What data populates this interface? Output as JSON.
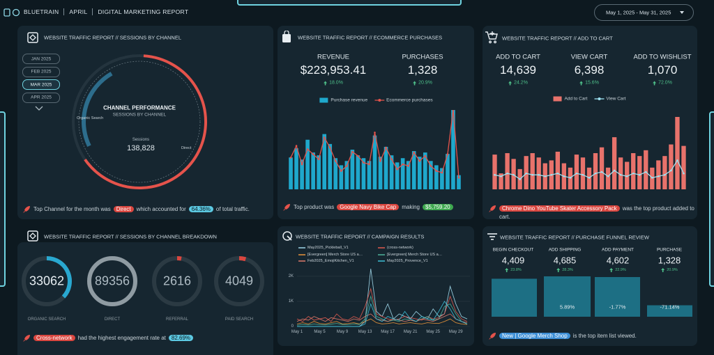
{
  "header": {
    "brand": "BLUETRAIN",
    "month": "APRIL",
    "report": "DIGITAL MARKETING REPORT",
    "date_range": "May 1, 2025 - May 31, 2025"
  },
  "sessions_by_channel": {
    "title": "WEBSITE TRAFFIC REPORT // SESSIONS BY CHANNEL",
    "months": [
      "JAN 2025",
      "FEB 2025",
      "MAR 2025",
      "APR 2025"
    ],
    "selected_month": "MAR 2025",
    "ring_title": "CHANNEL PERFORMANCE",
    "ring_subtitle": "SESSIONS BY CHANNEL",
    "segments": [
      {
        "name": "Direct",
        "value": 64.36,
        "color": "#e5534b"
      },
      {
        "name": "Organic Search",
        "value": 23.82,
        "color": "#2d6d8c"
      }
    ],
    "total_label": "Sessions",
    "total": "138,828",
    "insight": [
      {
        "text": "Top Channel for the month was"
      },
      {
        "text": "Direct",
        "chip": "#d9463f"
      },
      {
        "text": "which accounted for"
      },
      {
        "text": "64.36%",
        "chip": "#5cc9e2"
      },
      {
        "text": "of total traffic."
      }
    ]
  },
  "ecommerce_purchases": {
    "title": "WEBSITE TRAFFIC REPORT // ECOMMERCE PURCHASES",
    "kpis": [
      {
        "label": "REVENUE",
        "value": "$223,953.41",
        "change": "18.0%"
      },
      {
        "label": "PURCHASES",
        "value": "1,328",
        "change": "20.9%"
      }
    ],
    "chart": {
      "scale": "separate",
      "series": [
        {
          "name": "Purchase revenue",
          "type": "bar",
          "color": "#1fa8cc",
          "values": [
            5850,
            7540,
            5460,
            9100,
            6760,
            6240,
            10140,
            8320,
            5720,
            4420,
            5200,
            7280,
            6240,
            5720,
            5200,
            9880,
            5980,
            7800,
            6240,
            4940,
            5720,
            5200,
            7020,
            5980,
            6760,
            5200,
            4420,
            3900,
            6500,
            14560,
            2600
          ]
        },
        {
          "name": "Ecommerce purchases",
          "type": "line",
          "color": "#e5534b",
          "values": [
            38,
            52,
            30,
            48,
            42,
            36,
            62,
            50,
            34,
            22,
            28,
            45,
            40,
            32,
            30,
            68,
            34,
            50,
            36,
            24,
            30,
            28,
            44,
            34,
            40,
            28,
            22,
            20,
            42,
            95,
            14
          ]
        }
      ]
    },
    "insight": [
      {
        "text": "Top product was"
      },
      {
        "text": "Google Navy Bike Cap",
        "chip": "#d9463f"
      },
      {
        "text": "making"
      },
      {
        "text": "$5,759.20",
        "chip": "#3ea84f"
      }
    ]
  },
  "add_to_cart": {
    "title": "WEBSITE TRAFFIC REPORT // ADD TO CART",
    "kpis": [
      {
        "label": "ADD TO CART",
        "value": "14,639",
        "change": "24.2%"
      },
      {
        "label": "VIEW CART",
        "value": "6,398",
        "change": "15.6%"
      },
      {
        "label": "ADD TO WISHLIST",
        "value": "1,070",
        "change": "72.0%"
      }
    ],
    "chart": {
      "scale": "shared",
      "series": [
        {
          "name": "Add to Cart",
          "type": "bar",
          "color": "#e8726b",
          "values": [
            480,
            220,
            500,
            420,
            280,
            460,
            500,
            440,
            360,
            400,
            520,
            360,
            300,
            480,
            440,
            300,
            500,
            580,
            300,
            720,
            440,
            380,
            500,
            460,
            540,
            300,
            400,
            460,
            620,
            1000,
            600
          ]
        },
        {
          "name": "View Cart",
          "type": "line",
          "color": "#9fe3f2",
          "values": [
            200,
            180,
            220,
            200,
            140,
            220,
            200,
            200,
            180,
            200,
            220,
            180,
            160,
            220,
            200,
            160,
            220,
            240,
            180,
            260,
            200,
            180,
            220,
            200,
            240,
            160,
            180,
            200,
            260,
            400,
            220
          ]
        }
      ]
    },
    "insight": [
      {
        "text": "Chrome Dino YouTube Skater Accessory Pack",
        "chip": "#d9463f"
      },
      {
        "text": "was the top product added to cart."
      }
    ]
  },
  "channel_breakdown": {
    "title": "WEBSITE TRAFFIC REPORT // SESSIONS BY CHANNEL BREAKDOWN",
    "channels": [
      {
        "label": "ORGANIC SEARCH",
        "value": 33062,
        "color": "#29a8d0"
      },
      {
        "label": "DIRECT",
        "value": 89356,
        "color": "#8f9ba2"
      },
      {
        "label": "REFERRAL",
        "value": 2616,
        "color": "#d9463f"
      },
      {
        "label": "PAID SEARCH",
        "value": 4049,
        "color": "#d9463f"
      }
    ],
    "insight": [
      {
        "text": "Cross-network",
        "chip": "#d9463f"
      },
      {
        "text": "had the highest engagement rate at"
      },
      {
        "text": "82.69%",
        "chip": "#5cc9e2"
      }
    ]
  },
  "campaign_results": {
    "title": "WEBSITE TRAFFIC REPORT // CAMPAIGN RESULTS",
    "categories": [
      "May 1",
      null,
      null,
      null,
      "May 5",
      null,
      null,
      null,
      "May 9",
      null,
      null,
      null,
      "May 13",
      null,
      null,
      null,
      "May 17",
      null,
      null,
      null,
      "May 21",
      null,
      null,
      null,
      "May 25",
      null,
      null,
      null,
      "May 29",
      null,
      null
    ],
    "ylim": [
      0,
      2330
    ],
    "yticks": [
      0,
      {
        "value": 1000,
        "label": "1K"
      },
      {
        "value": 2000,
        "label": "2K"
      }
    ],
    "series": [
      {
        "name": "May2025_Pickleball_V1",
        "color": "#9fd6e8",
        "values": [
          0,
          0,
          0,
          0,
          0,
          0,
          0,
          0,
          0,
          0,
          0,
          0,
          200,
          2300,
          600,
          400,
          900,
          300,
          500,
          400,
          300,
          600,
          400,
          300,
          700,
          400,
          500,
          1600,
          900,
          400,
          300
        ]
      },
      {
        "name": "(cross-network)",
        "color": "#e05a4f",
        "values": [
          300,
          200,
          400,
          250,
          300,
          350,
          200,
          500,
          300,
          250,
          400,
          300,
          800,
          1500,
          500,
          400,
          300,
          250,
          300,
          400,
          350,
          300,
          250,
          400,
          300,
          350,
          500,
          1200,
          600,
          300,
          200
        ]
      },
      {
        "name": "[Evergreen] Merch Store US a…",
        "color": "#e8943a",
        "values": [
          100,
          150,
          100,
          200,
          120,
          100,
          150,
          200,
          100,
          120,
          150,
          100,
          200,
          300,
          150,
          100,
          120,
          150,
          100,
          130,
          150,
          120,
          100,
          150,
          130,
          120,
          200,
          300,
          150,
          100,
          80
        ]
      },
      {
        "name": "[Evergreen] Merch Store US a…",
        "color": "#4fb39a",
        "values": [
          50,
          80,
          60,
          100,
          70,
          60,
          90,
          120,
          80,
          70,
          100,
          80,
          300,
          1200,
          400,
          300,
          200,
          250,
          200,
          300,
          250,
          200,
          300,
          400,
          250,
          300,
          800,
          900,
          500,
          200,
          100
        ]
      },
      {
        "name": "Feb2025_EmojiKitchen_V1",
        "color": "#e07a6a",
        "values": [
          200,
          300,
          250,
          400,
          300,
          200,
          350,
          300,
          250,
          200,
          300,
          250,
          400,
          500,
          300,
          250,
          200,
          300,
          250,
          200,
          250,
          200,
          300,
          250,
          200,
          300,
          400,
          500,
          300,
          200,
          150
        ]
      },
      {
        "name": "May2025_Provence_V1",
        "color": "#3fc0d8",
        "values": [
          0,
          0,
          0,
          0,
          0,
          0,
          0,
          0,
          0,
          0,
          0,
          0,
          100,
          900,
          300,
          200,
          400,
          300,
          250,
          600,
          300,
          200,
          400,
          300,
          250,
          600,
          1000,
          700,
          300,
          200,
          100
        ]
      }
    ]
  },
  "purchase_funnel": {
    "title": "WEBSITE TRAFFIC REPORT // PURCHASE FUNNEL REVIEW",
    "color": "#1d6f84",
    "steps": [
      {
        "label": "BEGIN CHECKOUT",
        "value": 4409,
        "value_label": "4,409",
        "change": "23.8%"
      },
      {
        "label": "ADD SHIPPING",
        "value": 4685,
        "value_label": "4,685",
        "change": "28.3%",
        "drop": "5.89%"
      },
      {
        "label": "ADD PAYMENT",
        "value": 4602,
        "value_label": "4,602",
        "change": "22.9%",
        "drop": "-1.77%"
      },
      {
        "label": "PURCHASE",
        "value": 1328,
        "value_label": "1,328",
        "change": "20.9%",
        "drop": "-71.14%"
      }
    ],
    "insight": [
      {
        "text": "New | Google Merch Shop",
        "chip": "#3d8fd6"
      },
      {
        "text": "is the top item list viewed."
      }
    ]
  }
}
